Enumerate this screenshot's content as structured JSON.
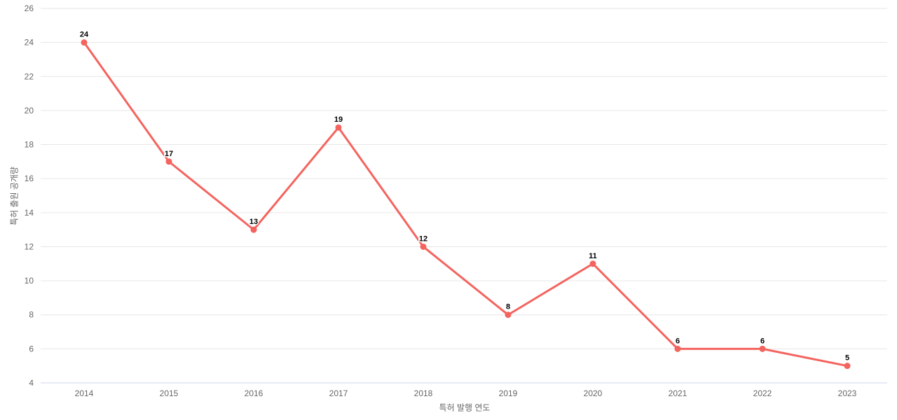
{
  "chart_data": {
    "type": "line",
    "categories": [
      "2014",
      "2015",
      "2016",
      "2017",
      "2018",
      "2019",
      "2020",
      "2021",
      "2022",
      "2023"
    ],
    "series": [
      {
        "name": "특허 출원 공개량",
        "values": [
          24,
          17,
          13,
          19,
          12,
          8,
          11,
          6,
          6,
          5
        ],
        "color": "#f4645f"
      }
    ],
    "title": "",
    "xlabel": "특허 발행 연도",
    "ylabel": "특허 출원 공개량",
    "ylim": [
      4,
      26
    ],
    "ytick_step": 2,
    "yticks": [
      4,
      6,
      8,
      10,
      12,
      14,
      16,
      18,
      20,
      22,
      24,
      26
    ],
    "grid": true,
    "legend": false,
    "data_labels": true,
    "colors": {
      "series_line": "#f4645f",
      "gridline": "#e6e6e6",
      "axis_line": "#ccd6eb",
      "tick_label": "#666666",
      "axis_title": "#666666",
      "data_label": "#000000",
      "background": "#ffffff"
    }
  }
}
